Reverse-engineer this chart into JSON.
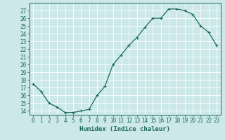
{
  "x": [
    0,
    1,
    2,
    3,
    4,
    5,
    6,
    7,
    8,
    9,
    10,
    11,
    12,
    13,
    14,
    15,
    16,
    17,
    18,
    19,
    20,
    21,
    22,
    23
  ],
  "y": [
    17.5,
    16.5,
    15.0,
    14.5,
    13.8,
    13.8,
    14.0,
    14.2,
    16.0,
    17.2,
    20.0,
    21.2,
    22.5,
    23.5,
    24.8,
    26.0,
    26.0,
    27.2,
    27.2,
    27.0,
    26.5,
    25.0,
    24.2,
    22.5
  ],
  "line_color": "#1a6b5a",
  "marker": "+",
  "marker_size": 3,
  "bg_color": "#cce8e8",
  "grid_color": "#ffffff",
  "xlabel": "Humidex (Indice chaleur)",
  "ylim": [
    13.5,
    28
  ],
  "xlim": [
    -0.5,
    23.5
  ],
  "yticks": [
    14,
    15,
    16,
    17,
    18,
    19,
    20,
    21,
    22,
    23,
    24,
    25,
    26,
    27
  ],
  "xtick_labels": [
    "0",
    "1",
    "2",
    "3",
    "4",
    "5",
    "6",
    "7",
    "8",
    "9",
    "10",
    "11",
    "12",
    "13",
    "14",
    "15",
    "16",
    "17",
    "18",
    "19",
    "20",
    "21",
    "22",
    "23"
  ],
  "tick_color": "#1a6b5a",
  "tick_fontsize": 5.5,
  "xlabel_fontsize": 6.5,
  "axis_color": "#1a6b5a",
  "linewidth": 0.9
}
